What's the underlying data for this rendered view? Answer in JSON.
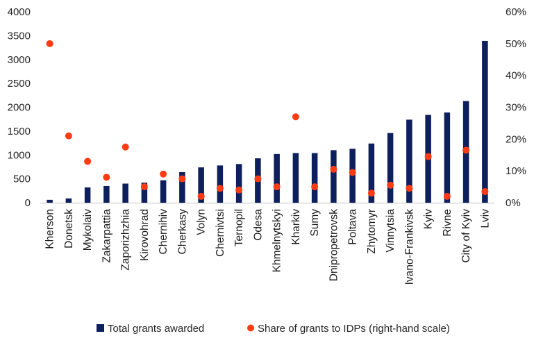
{
  "chart_data": {
    "type": "bar",
    "categories": [
      "Kherson",
      "Donetsk",
      "Mykolaiv",
      "Zakarpattia",
      "Zaporizhzhia",
      "Kirovohrad",
      "Chernihiv",
      "Cherkasy",
      "Volyn",
      "Chernivtsi",
      "Ternopil",
      "Odesa",
      "Khmelnytskyi",
      "Kharkiv",
      "Sumy",
      "Dnipropetrovsk",
      "Poltava",
      "Zhytomyr",
      "Vinnytsia",
      "Ivano-Frankivsk",
      "Kyiv",
      "Rivne",
      "City of Kyiv",
      "Lviv"
    ],
    "series": [
      {
        "name": "Total grants awarded",
        "type": "bar",
        "axis": "left",
        "color": "#0d1f5c",
        "values": [
          60,
          90,
          320,
          350,
          400,
          420,
          470,
          640,
          740,
          780,
          810,
          930,
          1020,
          1040,
          1040,
          1100,
          1130,
          1240,
          1460,
          1740,
          1840,
          1890,
          2130,
          3390
        ]
      },
      {
        "name": "Share of grants to IDPs (right-hand scale)",
        "type": "scatter",
        "axis": "right",
        "color": "#ff3b14",
        "values": [
          50,
          21,
          13,
          8,
          17.5,
          5,
          9,
          7.5,
          2,
          4.5,
          4,
          7.5,
          5,
          27,
          5,
          10.5,
          9.5,
          3,
          5.5,
          4.5,
          14.5,
          2,
          16.5,
          3.5
        ]
      }
    ],
    "ylim_left": [
      0,
      4000
    ],
    "ylim_right": [
      0,
      60
    ],
    "yticks_left": [
      "0",
      "500",
      "1000",
      "1500",
      "2000",
      "2500",
      "3000",
      "3500",
      "4000"
    ],
    "yticks_right": [
      "0%",
      "10%",
      "20%",
      "30%",
      "40%",
      "50%",
      "60%"
    ],
    "title": "",
    "xlabel": "",
    "ylabel": "",
    "grid": false,
    "legend_position": "bottom"
  }
}
